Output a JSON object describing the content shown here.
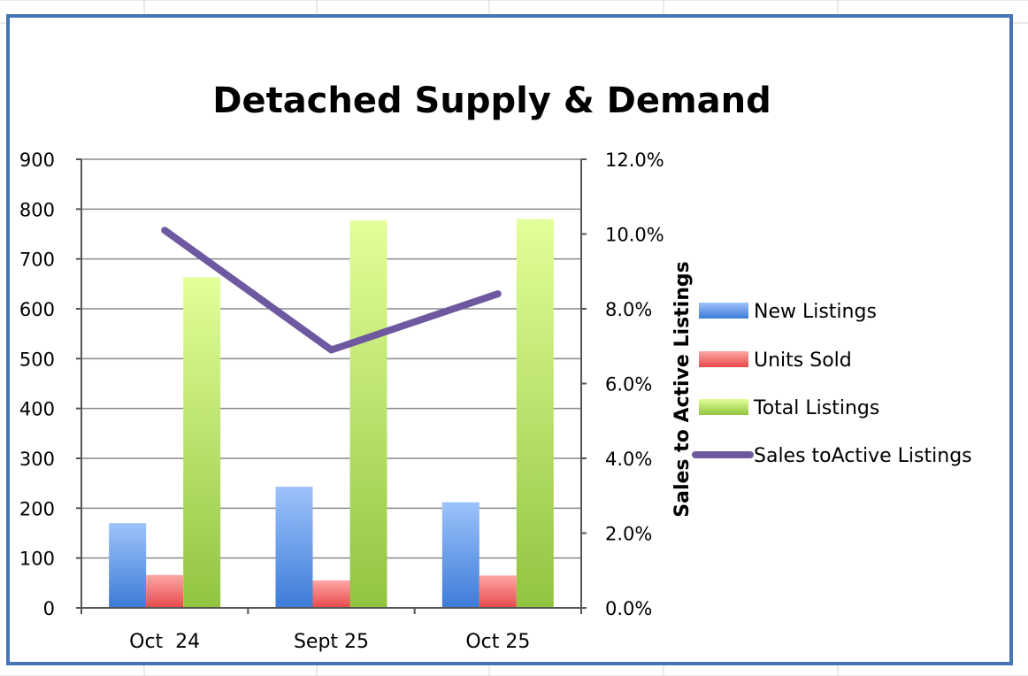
{
  "chart_data": {
    "type": "bar",
    "title": "Detached Supply & Demand",
    "categories": [
      "Oct  24",
      "Sept 25",
      "Oct 25"
    ],
    "series": [
      {
        "name": "New Listings",
        "type": "bar",
        "axis": "left",
        "values": [
          170,
          243,
          212
        ],
        "color_top": "#9dc3fb",
        "color_bottom": "#3d7bd8"
      },
      {
        "name": "Units Sold",
        "type": "bar",
        "axis": "left",
        "values": [
          66,
          55,
          65
        ],
        "color_top": "#ffa6a6",
        "color_bottom": "#e64a4a"
      },
      {
        "name": "Total Listings",
        "type": "bar",
        "axis": "left",
        "values": [
          663,
          777,
          780
        ],
        "color_top": "#e2ff99",
        "color_bottom": "#92c440"
      },
      {
        "name": "Sales toActive Listings",
        "type": "line",
        "axis": "right",
        "values": [
          10.1,
          6.9,
          8.4
        ],
        "color": "#6e58a0"
      }
    ],
    "y_left": {
      "min": 0,
      "max": 900,
      "step": 100,
      "tick_labels": [
        "0",
        "100",
        "200",
        "300",
        "400",
        "500",
        "600",
        "700",
        "800",
        "900"
      ]
    },
    "y_right": {
      "label": "Sales to Active Listings",
      "min": 0,
      "max": 12,
      "step": 2,
      "tick_labels": [
        "0.0%",
        "2.0%",
        "4.0%",
        "6.0%",
        "8.0%",
        "10.0%",
        "12.0%"
      ]
    },
    "grid": true,
    "legend_position": "right"
  }
}
